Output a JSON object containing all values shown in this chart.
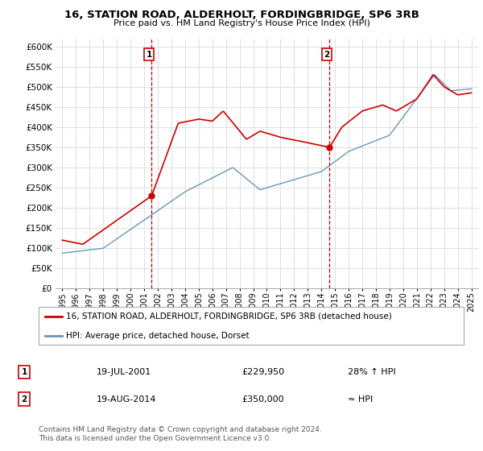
{
  "title": "16, STATION ROAD, ALDERHOLT, FORDINGBRIDGE, SP6 3RB",
  "subtitle": "Price paid vs. HM Land Registry's House Price Index (HPI)",
  "footer": "Contains HM Land Registry data © Crown copyright and database right 2024.\nThis data is licensed under the Open Government Licence v3.0.",
  "legend_line1": "16, STATION ROAD, ALDERHOLT, FORDINGBRIDGE, SP6 3RB (detached house)",
  "legend_line2": "HPI: Average price, detached house, Dorset",
  "ann1_date": "19-JUL-2001",
  "ann1_price": "£229,950",
  "ann1_hpi": "28% ↑ HPI",
  "ann1_x": 2001.55,
  "ann1_y": 229950,
  "ann2_date": "19-AUG-2014",
  "ann2_price": "£350,000",
  "ann2_hpi": "≈ HPI",
  "ann2_x": 2014.6,
  "ann2_y": 350000,
  "ylim": [
    0,
    620000
  ],
  "yticks": [
    0,
    50000,
    100000,
    150000,
    200000,
    250000,
    300000,
    350000,
    400000,
    450000,
    500000,
    550000,
    600000
  ],
  "xlim_min": 1994.5,
  "xlim_max": 2025.5,
  "background_color": "#ffffff",
  "grid_color": "#e0e0e0",
  "red_color": "#cc0000",
  "hpi_color": "#6699bb"
}
